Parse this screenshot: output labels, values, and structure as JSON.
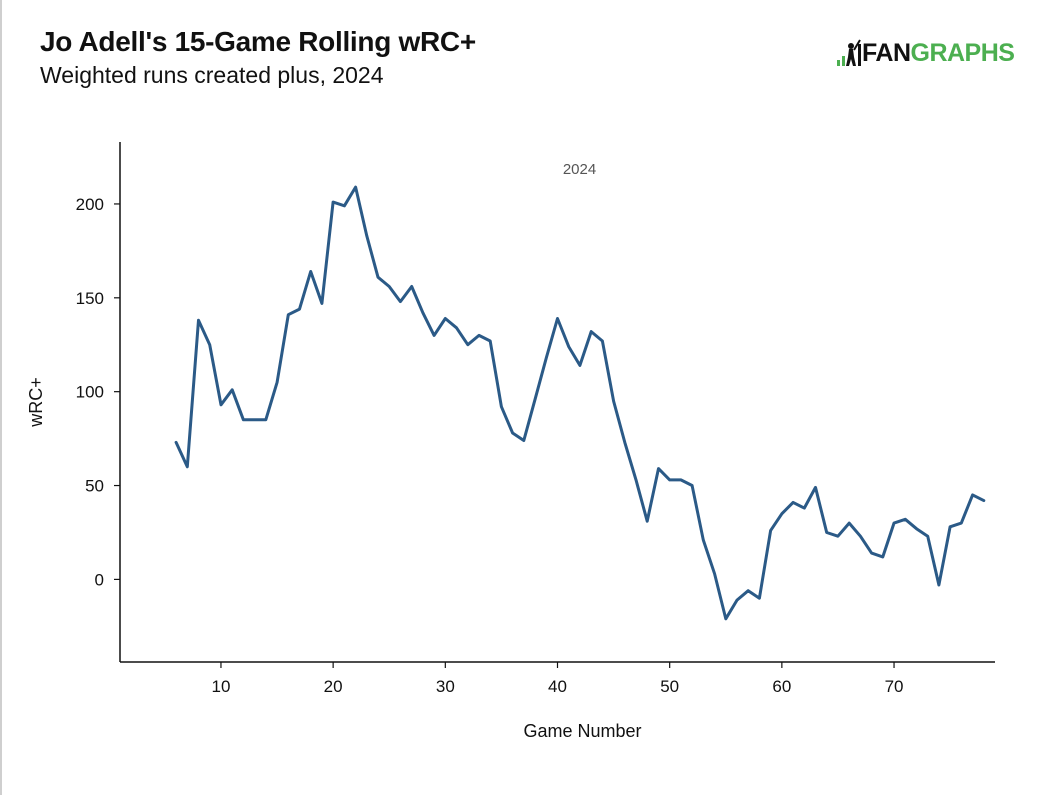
{
  "header": {
    "title": "Jo Adell's 15-Game Rolling wRC+",
    "subtitle": "Weighted runs created plus, 2024"
  },
  "logo": {
    "fan": "FAN",
    "graphs": "GRAPHS",
    "brand_color": "#4caf50",
    "icon": "batter-silhouette-icon"
  },
  "chart_data": {
    "type": "line",
    "title": "Jo Adell's 15-Game Rolling wRC+",
    "subtitle": "Weighted runs created plus, 2024",
    "xlabel": "Game Number",
    "ylabel": "wRC+",
    "annotation": "2024",
    "xlim": [
      1,
      79
    ],
    "ylim": [
      -44,
      233
    ],
    "xticks": [
      10,
      20,
      30,
      40,
      50,
      60,
      70
    ],
    "yticks": [
      0,
      50,
      100,
      150,
      200
    ],
    "grid": false,
    "line_color": "#2b5a87",
    "series": [
      {
        "x": [
          6,
          7,
          8,
          9,
          10,
          11,
          12,
          13,
          14,
          15,
          16,
          17,
          18,
          19,
          20,
          21,
          22,
          23,
          24,
          25,
          26,
          27,
          28,
          29,
          30,
          31,
          32,
          33,
          34,
          35,
          36,
          37,
          38,
          39,
          40,
          41,
          42,
          43,
          44,
          45,
          46,
          47,
          48,
          49,
          50,
          51,
          52,
          53,
          54,
          55,
          56,
          57,
          58,
          59,
          60,
          61,
          62,
          63,
          64,
          65,
          66,
          67,
          68,
          69,
          70,
          71,
          72,
          73,
          74,
          75,
          76,
          77,
          78
        ],
        "values": [
          73,
          60,
          138,
          125,
          93,
          101,
          85,
          85,
          85,
          105,
          141,
          144,
          164,
          147,
          201,
          199,
          209,
          183,
          161,
          156,
          148,
          156,
          142,
          130,
          139,
          134,
          125,
          130,
          127,
          92,
          78,
          74,
          96,
          118,
          139,
          124,
          114,
          132,
          127,
          95,
          73,
          53,
          31,
          59,
          53,
          53,
          50,
          21,
          3,
          -21,
          -11,
          -6,
          -10,
          26,
          35,
          41,
          38,
          49,
          25,
          23,
          30,
          23,
          14,
          12,
          30,
          32,
          27,
          23,
          -3,
          28,
          30,
          45,
          42
        ]
      }
    ]
  }
}
